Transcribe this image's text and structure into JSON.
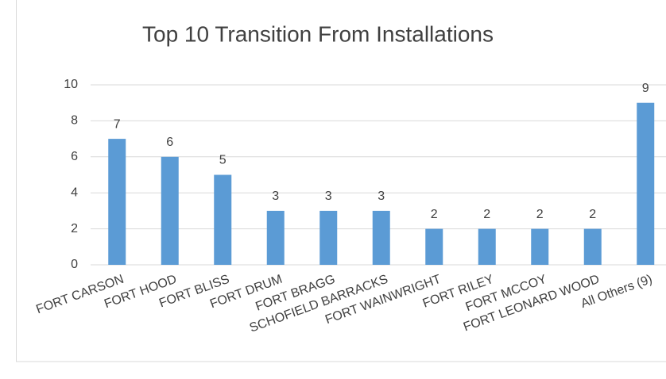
{
  "chart_data": {
    "type": "bar",
    "title": "Top 10 Transition From Installations",
    "categories": [
      "FORT CARSON",
      "FORT HOOD",
      "FORT BLISS",
      "FORT DRUM",
      "FORT BRAGG",
      "SCHOFIELD BARRACKS",
      "FORT WAINWRIGHT",
      "FORT RILEY",
      "FORT MCCOY",
      "FORT LEONARD WOOD",
      "All Others (9)"
    ],
    "values": [
      7,
      6,
      5,
      3,
      3,
      3,
      2,
      2,
      2,
      2,
      9
    ],
    "color": "#5b9bd5",
    "ylim": [
      0,
      10
    ],
    "yticks": [
      0,
      2,
      4,
      6,
      8,
      10
    ],
    "grid": true,
    "data_labels": true
  }
}
